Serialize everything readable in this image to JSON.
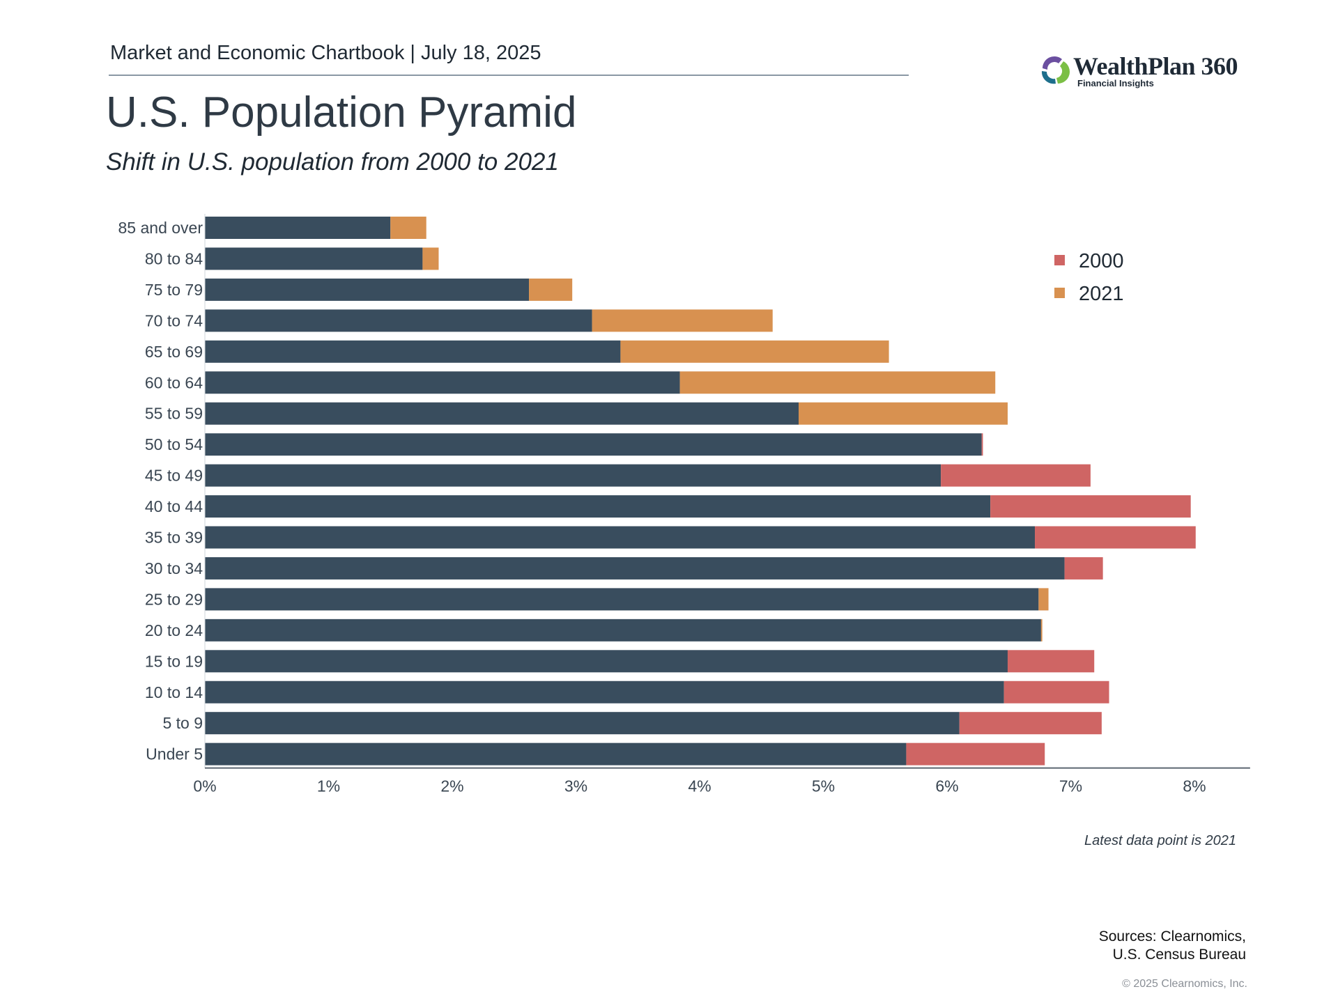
{
  "header": {
    "text": "Market and Economic Chartbook | July 18, 2025"
  },
  "logo": {
    "name": "WealthPlan 360",
    "tagline": "Financial Insights"
  },
  "title": "U.S. Population Pyramid",
  "subtitle": "Shift in U.S. population from 2000 to 2021",
  "chart_data": {
    "type": "bar",
    "orientation": "horizontal",
    "categories": [
      "85 and over",
      "80 to 84",
      "75 to 79",
      "70 to 74",
      "65 to 69",
      "60 to 64",
      "55 to 59",
      "50 to 54",
      "45 to 49",
      "40 to 44",
      "35 to 39",
      "30 to 34",
      "25 to 29",
      "20 to 24",
      "15 to 19",
      "10 to 14",
      "5 to 9",
      "Under 5"
    ],
    "series": [
      {
        "name": "2000",
        "color": "#cf6564",
        "values": [
          1.5,
          1.76,
          2.62,
          3.13,
          3.36,
          3.84,
          4.8,
          6.29,
          7.16,
          7.97,
          8.01,
          7.26,
          6.74,
          6.76,
          7.19,
          7.31,
          7.25,
          6.79
        ]
      },
      {
        "name": "2021",
        "color": "#d89150",
        "values": [
          1.79,
          1.89,
          2.97,
          4.59,
          5.53,
          6.39,
          6.49,
          6.28,
          5.95,
          6.35,
          6.71,
          6.95,
          6.82,
          6.77,
          6.49,
          6.46,
          6.1,
          5.67
        ]
      }
    ],
    "overlap_color": "#394d5e",
    "xlim": [
      0,
      8.45
    ],
    "xticks": [
      "0%",
      "1%",
      "2%",
      "3%",
      "4%",
      "5%",
      "6%",
      "7%",
      "8%"
    ],
    "xtick_values": [
      0,
      1,
      2,
      3,
      4,
      5,
      6,
      7,
      8
    ],
    "legend_position": "top-right",
    "grid": false
  },
  "footer": {
    "note": "Latest data point is 2021",
    "sources_line1": "Sources: Clearnomics,",
    "sources_line2": "U.S. Census Bureau",
    "copyright": "© 2025 Clearnomics, Inc."
  }
}
